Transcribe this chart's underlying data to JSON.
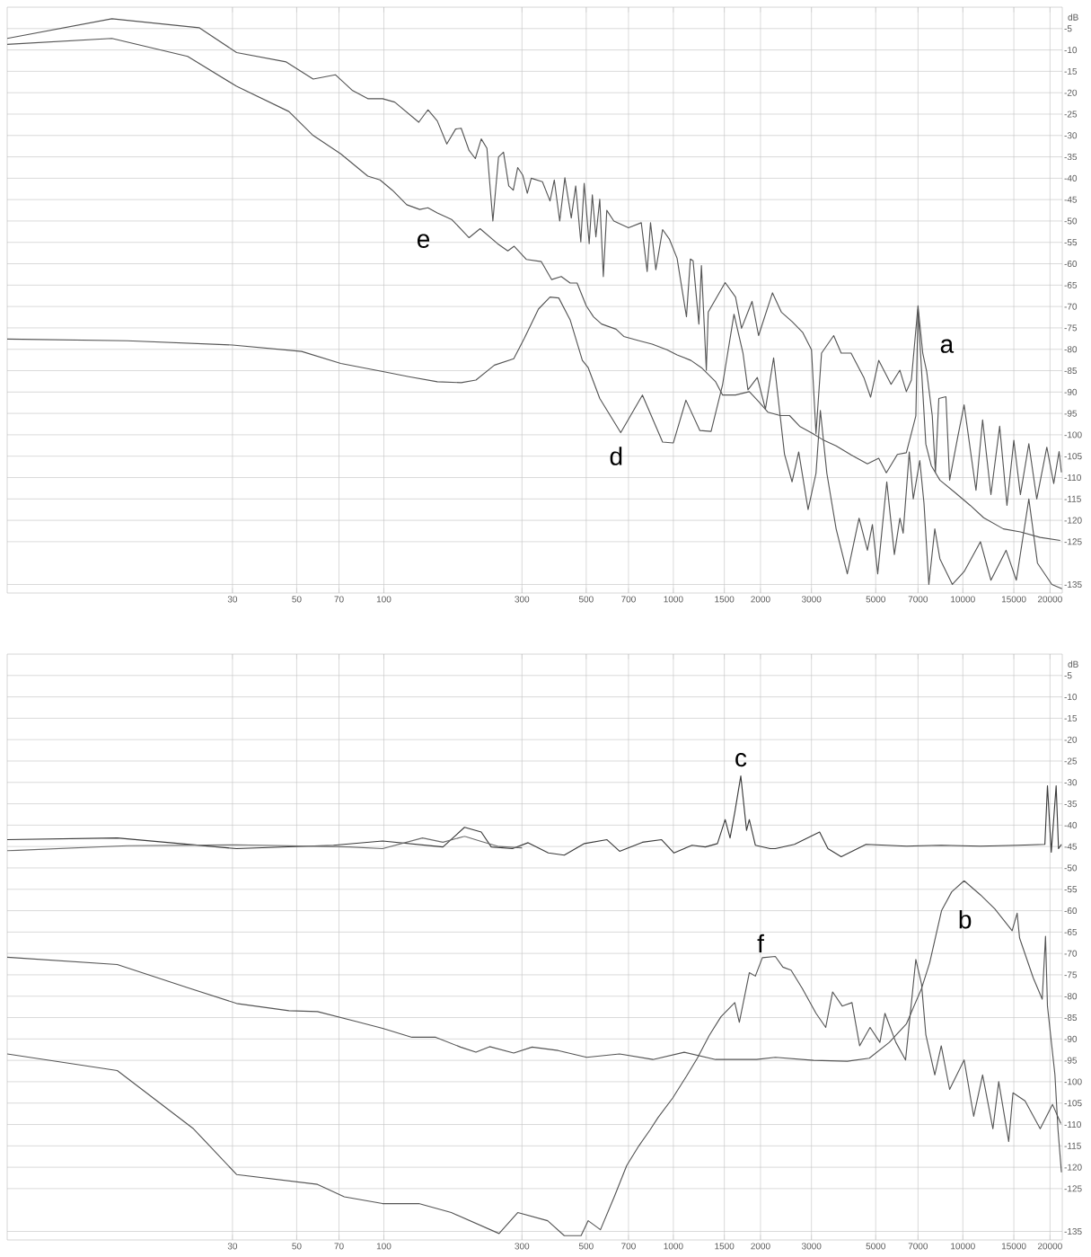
{
  "chart_data": [
    {
      "type": "line",
      "ylabel": "dB",
      "log": "x",
      "xlim": [
        5,
        22050
      ],
      "ylim": [
        -137,
        0
      ],
      "xticks": [
        30,
        50,
        70,
        100,
        300,
        500,
        700,
        1000,
        1500,
        2000,
        3000,
        5000,
        7000,
        10000,
        15000,
        20000
      ],
      "yticks": [
        -5,
        -10,
        -15,
        -20,
        -25,
        -30,
        -35,
        -40,
        -45,
        -50,
        -55,
        -60,
        -65,
        -70,
        -75,
        -80,
        -85,
        -90,
        -95,
        -100,
        -105,
        -110,
        -115,
        -120,
        -125,
        -135
      ],
      "grid": true,
      "annotations": [
        "a",
        "e",
        "d"
      ],
      "series": [
        {
          "color": "#555555",
          "x": [
            5,
            11.5,
            23,
            31,
            46,
            57,
            68,
            78,
            88,
            99,
            109,
            132,
            142,
            153,
            165,
            177,
            185,
            197,
            207,
            217,
            227,
            238,
            249,
            259,
            270,
            280,
            290,
            302,
            313,
            323,
            353,
            375,
            388,
            405,
            422,
            444,
            460,
            479,
            492,
            512,
            525,
            540,
            557,
            573,
            589,
            623,
            700,
            775,
            812,
            834,
            870,
            918,
            970,
            1030,
            1110,
            1145,
            1170,
            1225,
            1250,
            1300,
            1320,
            1510,
            1640,
            1720,
            1870,
            1970,
            2200,
            2360,
            2570,
            2800,
            3000,
            3110,
            3250,
            3580,
            3800,
            4110,
            4550,
            4800,
            5120,
            5650,
            6060,
            6380,
            6640,
            7000,
            7270,
            7500,
            7840,
            8040,
            8260,
            8740,
            9000,
            9600,
            10100,
            11100,
            11700,
            12500,
            13400,
            14200,
            15000,
            15800,
            16900,
            18000,
            19500,
            20600,
            21500,
            21900
          ],
          "values": [
            -7.3,
            -2.7,
            -4.8,
            -10.6,
            -12.8,
            -16.8,
            -15.8,
            -19.5,
            -21.4,
            -21.4,
            -22.2,
            -26.9,
            -24,
            -26.6,
            -32,
            -28.5,
            -28.3,
            -33.5,
            -35.4,
            -30.8,
            -33,
            -50,
            -35,
            -33.9,
            -41.8,
            -42.8,
            -37.5,
            -39.3,
            -43.5,
            -40,
            -40.8,
            -45.3,
            -40.4,
            -50,
            -39.9,
            -49.3,
            -41.8,
            -54.9,
            -41.2,
            -55.3,
            -43.9,
            -53.7,
            -44.9,
            -63,
            -47.5,
            -50,
            -51.6,
            -50.4,
            -61.8,
            -50.4,
            -61.4,
            -52,
            -54.3,
            -58.7,
            -72.4,
            -58.9,
            -59.3,
            -74.1,
            -60.4,
            -84.9,
            -71.3,
            -64.4,
            -67.8,
            -75.1,
            -68.8,
            -76.8,
            -66.8,
            -71.3,
            -73.5,
            -76.1,
            -80.1,
            -99.7,
            -80.9,
            -76.8,
            -80.9,
            -80.9,
            -86.6,
            -91.2,
            -82.6,
            -88.2,
            -84.9,
            -89.9,
            -87.2,
            -69.8,
            -80.9,
            -85.2,
            -95.5,
            -108.8,
            -91.5,
            -91.1,
            -110.6,
            -100.5,
            -93,
            -113,
            -96.5,
            -114,
            -98,
            -116.5,
            -101.3,
            -114,
            -102.1,
            -115,
            -102.9,
            -111.4,
            -103.9,
            -108.8
          ]
        },
        {
          "color": "#555555",
          "x": [
            5,
            11.5,
            21,
            31,
            47,
            57,
            71,
            88,
            97,
            107,
            120,
            133,
            142,
            153,
            172,
            197,
            215,
            247,
            268,
            282,
            311,
            350,
            380,
            410,
            440,
            465,
            500,
            530,
            565,
            634,
            674,
            762,
            845,
            950,
            1030,
            1150,
            1250,
            1400,
            1480,
            1640,
            1830,
            1970,
            2120,
            2340,
            2520,
            2730,
            3030,
            3310,
            3650,
            4110,
            4680,
            5120,
            5440,
            5940,
            6380,
            6880,
            7000,
            7450,
            7780,
            8330,
            9360,
            10600,
            11800,
            13800,
            15800,
            18500,
            21700
          ],
          "values": [
            -8.7,
            -7.3,
            -11.5,
            -18.5,
            -24.4,
            -30,
            -34.3,
            -39.5,
            -40.4,
            -42.8,
            -46.2,
            -47.3,
            -46.9,
            -48.1,
            -49.7,
            -53.9,
            -51.8,
            -55.3,
            -57,
            -55.9,
            -59,
            -59.5,
            -63.7,
            -63,
            -64.5,
            -64.5,
            -69.8,
            -72.4,
            -74.1,
            -75.3,
            -77,
            -78,
            -78.8,
            -80.1,
            -81.3,
            -82.6,
            -84.3,
            -87.6,
            -90.7,
            -90.7,
            -89.9,
            -92.2,
            -94.7,
            -95.5,
            -95.5,
            -98,
            -99.7,
            -101.3,
            -102.6,
            -104.7,
            -106.8,
            -105.5,
            -108.9,
            -104.6,
            -104.2,
            -95.6,
            -70.7,
            -102.2,
            -107.2,
            -110.6,
            -113.4,
            -116.5,
            -119.4,
            -122,
            -122.7,
            -124,
            -124.7
          ]
        },
        {
          "color": "#555555",
          "x": [
            5,
            13,
            30,
            52,
            71,
            101,
            122,
            153,
            185,
            208,
            241,
            281,
            306,
            342,
            375,
            402,
            440,
            485,
            508,
            557,
            658,
            782,
            918,
            1000,
            1105,
            1235,
            1350,
            1480,
            1620,
            1740,
            1810,
            1950,
            2080,
            2220,
            2420,
            2570,
            2710,
            2920,
            3110,
            3220,
            3390,
            3650,
            3990,
            4380,
            4680,
            4870,
            5080,
            5460,
            5800,
            6060,
            6220,
            6530,
            6740,
            7100,
            7340,
            7630,
            8000,
            8330,
            9200,
            10100,
            11500,
            12500,
            14100,
            15300,
            16900,
            18100,
            20300,
            22000
          ],
          "values": [
            -77.6,
            -78,
            -79,
            -80.5,
            -83.3,
            -85.3,
            -86.4,
            -87.6,
            -87.8,
            -87.2,
            -83.7,
            -82.2,
            -77.4,
            -70.6,
            -67.8,
            -68,
            -73.1,
            -82.6,
            -84.3,
            -91.5,
            -99.5,
            -90.7,
            -101.7,
            -101.9,
            -91.9,
            -99,
            -99.2,
            -88.2,
            -71.8,
            -80.9,
            -89.5,
            -86.6,
            -94,
            -82,
            -104.5,
            -111,
            -104,
            -117.5,
            -109,
            -94.3,
            -109,
            -122,
            -132.5,
            -119.5,
            -127,
            -121,
            -132.5,
            -111,
            -128,
            -119.5,
            -123,
            -104,
            -115,
            -106,
            -116,
            -135,
            -122,
            -129,
            -135,
            -132,
            -125,
            -134,
            -127,
            -134,
            -115,
            -130,
            -135,
            -136
          ]
        }
      ]
    },
    {
      "type": "line",
      "ylabel": "dB",
      "log": "x",
      "xlim": [
        5,
        22050
      ],
      "ylim": [
        -137,
        0
      ],
      "xticks": [
        30,
        50,
        70,
        100,
        300,
        500,
        700,
        1000,
        1500,
        2000,
        3000,
        5000,
        7000,
        10000,
        15000,
        20000
      ],
      "yticks": [
        -5,
        -10,
        -15,
        -20,
        -25,
        -30,
        -35,
        -40,
        -45,
        -50,
        -55,
        -60,
        -65,
        -70,
        -75,
        -80,
        -85,
        -90,
        -95,
        -100,
        -105,
        -110,
        -115,
        -120,
        -125,
        -135
      ],
      "grid": true,
      "annotations": [
        "c",
        "f",
        "b"
      ],
      "series": [
        {
          "color": "#3a3a3a",
          "x": [
            5,
            12,
            31,
            67,
            99,
            160,
            190,
            217,
            235,
            278,
            315,
            370,
            420,
            493,
            590,
            652,
            782,
            911,
            1005,
            1160,
            1290,
            1420,
            1510,
            1570,
            1630,
            1710,
            1790,
            1830,
            1920,
            2160,
            2250,
            2620,
            3200,
            3420,
            3800,
            4630,
            6400,
            8420,
            11500,
            15500,
            19200,
            19600,
            20200,
            21000,
            21400,
            21900
          ],
          "values": [
            -43.4,
            -43,
            -45.5,
            -44.7,
            -43.7,
            -45.1,
            -40.5,
            -41.6,
            -45.1,
            -45.5,
            -44.1,
            -46.5,
            -47,
            -44.3,
            -43.4,
            -46.1,
            -44,
            -43.4,
            -46.5,
            -44.7,
            -45.1,
            -44.3,
            -38.7,
            -43,
            -37,
            -28.5,
            -41.2,
            -38.7,
            -44.7,
            -45.5,
            -45.5,
            -44.5,
            -41.6,
            -45.5,
            -47.4,
            -44.5,
            -44.9,
            -44.7,
            -44.9,
            -44.7,
            -44.5,
            -30.8,
            -46.3,
            -30.8,
            -45.5,
            -44.5
          ]
        },
        {
          "color": "#6a6a6a",
          "x": [
            5,
            13,
            31,
            76,
            99,
            136,
            160,
            190,
            217,
            250,
            300
          ],
          "values": [
            -46,
            -44.8,
            -44.6,
            -45.1,
            -45.5,
            -43,
            -44,
            -42.6,
            -43.8,
            -45,
            -45.3
          ]
        },
        {
          "color": "#555555",
          "x": [
            5,
            12,
            21,
            31,
            47,
            59,
            80,
            99,
            125,
            151,
            184,
            208,
            232,
            281,
            325,
            400,
            502,
            652,
            850,
            1090,
            1400,
            1940,
            2250,
            3050,
            3990,
            4750,
            5570,
            6380,
            7200,
            7680,
            8440,
            9150,
            10100,
            11500,
            12900,
            14800,
            15400,
            15700,
            17500,
            18800,
            19300,
            19600,
            20800,
            21300,
            21900
          ],
          "values": [
            -70.9,
            -72.6,
            -78,
            -81.7,
            -83.4,
            -83.6,
            -85.9,
            -87.5,
            -89.6,
            -89.6,
            -91.9,
            -93.1,
            -91.8,
            -93.3,
            -91.9,
            -92.7,
            -94.3,
            -93.5,
            -94.8,
            -93.1,
            -94.8,
            -94.8,
            -94.3,
            -95,
            -95.2,
            -94.5,
            -90.8,
            -86.5,
            -78.2,
            -72.2,
            -60,
            -55.6,
            -53,
            -56.3,
            -59.6,
            -64.7,
            -60.6,
            -66.4,
            -75.7,
            -80.7,
            -66,
            -82.3,
            -98.4,
            -111,
            -121.2
          ]
        },
        {
          "color": "#555555",
          "x": [
            5,
            12,
            22,
            31,
            59,
            73,
            99,
            132,
            171,
            250,
            290,
            368,
            420,
            480,
            508,
            560,
            625,
            690,
            760,
            830,
            885,
            995,
            1110,
            1210,
            1330,
            1460,
            1630,
            1690,
            1830,
            1920,
            2030,
            2250,
            2390,
            2550,
            2790,
            3110,
            3360,
            3550,
            3830,
            4140,
            4400,
            4780,
            5170,
            5380,
            5870,
            6340,
            6880,
            7200,
            7450,
            8000,
            8420,
            9000,
            10100,
            10900,
            11700,
            12700,
            13300,
            14400,
            14900,
            16400,
            18500,
            20400,
            21800
          ],
          "values": [
            -93.5,
            -97.4,
            -111,
            -121.7,
            -124,
            -126.9,
            -128.5,
            -128.5,
            -130.6,
            -135.5,
            -130.6,
            -132.5,
            -136,
            -136,
            -132.5,
            -134.6,
            -126.9,
            -119.6,
            -115,
            -111.3,
            -108.4,
            -103.8,
            -98.7,
            -94.5,
            -89.2,
            -84.8,
            -81.5,
            -86.1,
            -74.5,
            -75.3,
            -71,
            -70.7,
            -73.2,
            -73.9,
            -78.2,
            -84,
            -87.3,
            -79,
            -82.3,
            -81.5,
            -91.6,
            -87.3,
            -90.8,
            -84,
            -90.8,
            -94.9,
            -71.4,
            -77.2,
            -89,
            -98.4,
            -91.6,
            -101.8,
            -94.9,
            -108.1,
            -98.4,
            -111,
            -100,
            -114,
            -102.6,
            -104.5,
            -111,
            -105.3,
            -109.8
          ]
        }
      ]
    }
  ]
}
